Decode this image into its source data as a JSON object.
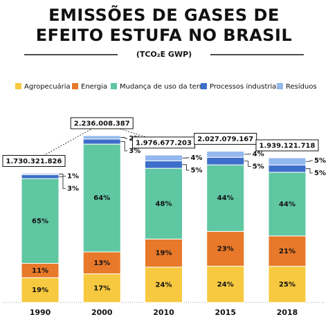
{
  "chart_data": {
    "type": "stacked_bar",
    "title": "EMISSÕES DE GASES DE\nEFEITO ESTUFA NO BRASIL",
    "subtitle": "(TCO₂E GWP)",
    "categories": [
      "1990",
      "2000",
      "2010",
      "2015",
      "2018"
    ],
    "totals": {
      "values": [
        1730321826,
        2236008387,
        1976677203,
        2027079167,
        1939121718
      ],
      "value_labels": [
        "1.730.321.826",
        "2.236.008.387",
        "1.976.677.203",
        "2.027.079.167",
        "1.939.121.718"
      ]
    },
    "series": [
      {
        "name": "Agropecuária",
        "color": "#f7c940",
        "values": [
          19,
          17,
          24,
          24,
          25
        ],
        "value_labels": [
          "19%",
          "17%",
          "24%",
          "24%",
          "25%"
        ]
      },
      {
        "name": "Energia",
        "color": "#e8782a",
        "values": [
          11,
          13,
          19,
          23,
          21
        ],
        "value_labels": [
          "11%",
          "13%",
          "19%",
          "23%",
          "21%"
        ]
      },
      {
        "name": "Mudança de uso da terra",
        "color": "#5fc7a2",
        "values": [
          65,
          64,
          48,
          44,
          44
        ],
        "value_labels": [
          "65%",
          "64%",
          "48%",
          "44%",
          "44%"
        ]
      },
      {
        "name": "Processos industriais",
        "color": "#3d6fca",
        "values": [
          3,
          3,
          5,
          5,
          5
        ],
        "value_labels": [
          "3%",
          "3%",
          "5%",
          "5%",
          "5%"
        ]
      },
      {
        "name": "Resíduos",
        "color": "#93b8ee",
        "values": [
          1,
          2,
          4,
          4,
          5
        ],
        "value_labels": [
          "1%",
          "2%",
          "4%",
          "4%",
          "5%"
        ]
      }
    ]
  }
}
